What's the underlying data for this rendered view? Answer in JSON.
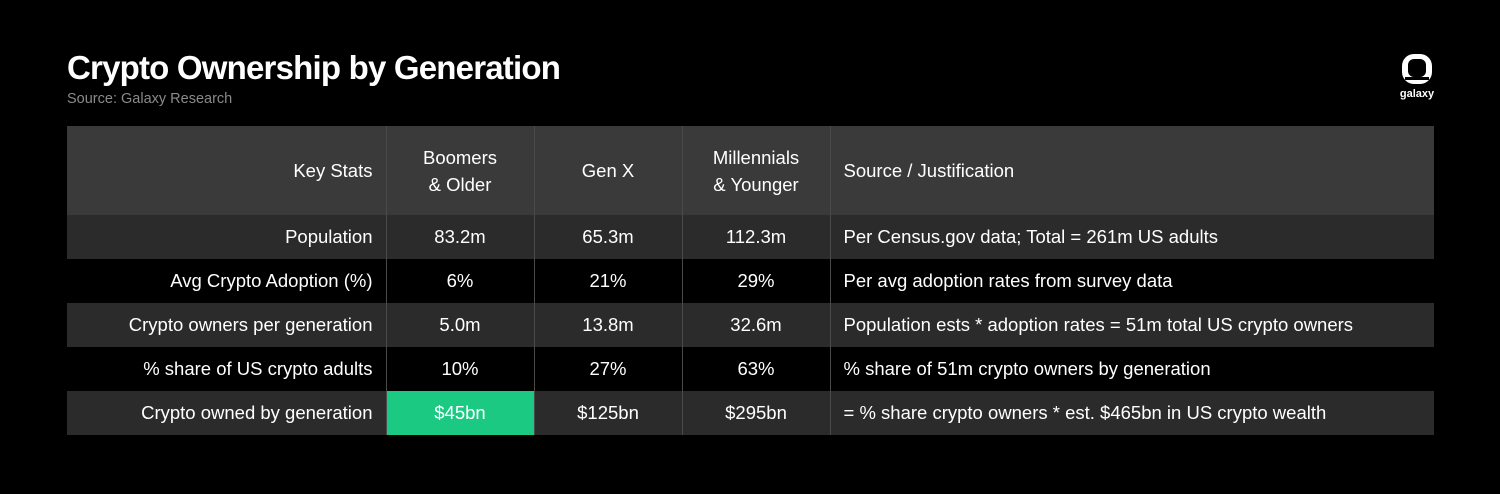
{
  "header": {
    "title": "Crypto Ownership by Generation",
    "source": "Source: Galaxy Research",
    "logo_text": "galaxy"
  },
  "colors": {
    "background": "#000000",
    "header_row": "#3a3a3a",
    "band_row": "#2b2b2b",
    "highlight": "#1cc983"
  },
  "chart_data": {
    "type": "table",
    "title": "Crypto Ownership by Generation",
    "columns": [
      "Key Stats",
      "Boomers & Older",
      "Gen X",
      "Millennials & Younger",
      "Source / Justification"
    ],
    "column_lines": [
      [
        "Key Stats"
      ],
      [
        "Boomers",
        "& Older"
      ],
      [
        "Gen X"
      ],
      [
        "Millennials",
        "& Younger"
      ],
      [
        "Source / Justification"
      ]
    ],
    "rows": [
      [
        "Population",
        "83.2m",
        "65.3m",
        "112.3m",
        "Per Census.gov data; Total = 261m US adults"
      ],
      [
        "Avg Crypto Adoption (%)",
        "6%",
        "21%",
        "29%",
        "Per avg adoption rates from survey data"
      ],
      [
        "Crypto owners per generation",
        "5.0m",
        "13.8m",
        "32.6m",
        "Population ests * adoption rates = 51m total US crypto owners"
      ],
      [
        "% share of US crypto adults",
        "10%",
        "27%",
        "63%",
        "% share of 51m crypto owners by generation"
      ],
      [
        "Crypto owned by generation",
        "$45bn",
        "$125bn",
        "$295bn",
        "= % share crypto owners * est. $465bn in US crypto wealth"
      ]
    ],
    "highlighted_cell": {
      "row": 4,
      "col": 1
    }
  }
}
